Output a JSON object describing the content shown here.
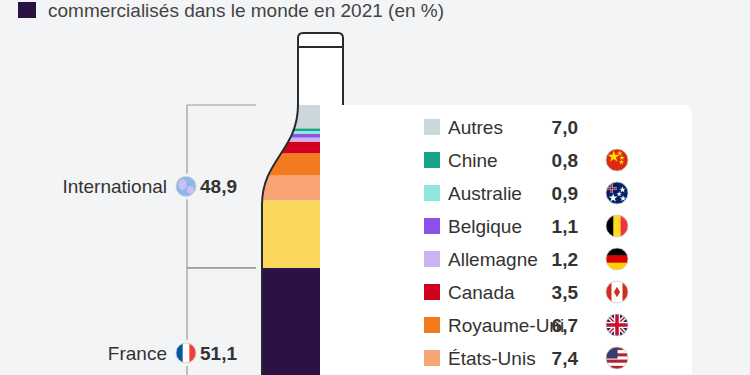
{
  "chart_data": {
    "type": "bar",
    "stacked": true,
    "title": "commercialisés dans le monde en 2021 (en %)",
    "ylim": [
      0,
      100
    ],
    "tick_labels": false,
    "series": [
      {
        "color": "#2b1244",
        "values": [
          51.1
        ]
      },
      {
        "color": "#fad65c",
        "values": [
          20.3
        ]
      },
      {
        "name": "États-Unis",
        "color": "#f9a474",
        "values": [
          7.4
        ],
        "value_labels": [
          "7,4"
        ]
      },
      {
        "name": "Royaume-Uni",
        "color": "#f47a20",
        "values": [
          6.7
        ],
        "value_labels": [
          "6,7"
        ]
      },
      {
        "name": "Canada",
        "color": "#d1001f",
        "values": [
          3.5
        ],
        "value_labels": [
          "3,5"
        ]
      },
      {
        "name": "Allemagne",
        "color": "#cbb3f0",
        "values": [
          1.2
        ],
        "value_labels": [
          "1,2"
        ]
      },
      {
        "name": "Belgique",
        "color": "#8c52e8",
        "values": [
          1.1
        ],
        "value_labels": [
          "1,1"
        ]
      },
      {
        "name": "Australie",
        "color": "#8ee6dc",
        "values": [
          0.9
        ],
        "value_labels": [
          "0,9"
        ]
      },
      {
        "name": "Chine",
        "color": "#19a38c",
        "values": [
          0.8
        ],
        "value_labels": [
          "0,8"
        ]
      },
      {
        "name": "Autres",
        "color": "#ccd6dd",
        "values": [
          7.0
        ],
        "value_labels": [
          "7,0"
        ]
      }
    ],
    "groups": [
      {
        "label": "France",
        "value": 51.1,
        "value_label": "51,1"
      },
      {
        "label": "International",
        "value": 48.9,
        "value_label": "48,9"
      }
    ]
  }
}
